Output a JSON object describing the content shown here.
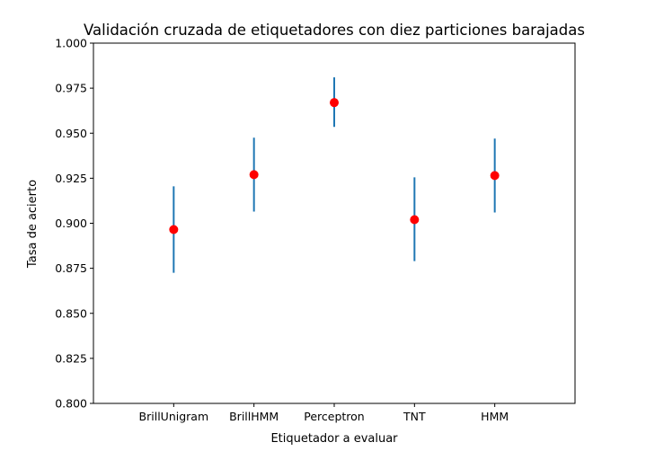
{
  "chart_data": {
    "type": "scatter",
    "title": "Validación cruzada de etiquetadores con diez particiones barajadas",
    "xlabel": "Etiquetador a evaluar",
    "ylabel": "Tasa de acierto",
    "categories": [
      "BrillUnigram",
      "BrillHMM",
      "Perceptron",
      "TNT",
      "HMM"
    ],
    "series": [
      {
        "values": [
          0.8965,
          0.927,
          0.967,
          0.902,
          0.9265
        ],
        "error_low": [
          0.8725,
          0.9065,
          0.9535,
          0.879,
          0.906
        ],
        "error_high": [
          0.9205,
          0.9475,
          0.981,
          0.9255,
          0.947
        ],
        "marker_color": "#ff0000",
        "errorbar_color": "#1f77b4"
      }
    ],
    "ylim": [
      0.8,
      1.0
    ],
    "yticks": [
      "0.800",
      "0.825",
      "0.850",
      "0.875",
      "0.900",
      "0.925",
      "0.950",
      "0.975",
      "1.000"
    ],
    "ytick_values": [
      0.8,
      0.825,
      0.85,
      0.875,
      0.9,
      0.925,
      0.95,
      0.975,
      1.0
    ],
    "grid": false,
    "legend": "none"
  }
}
